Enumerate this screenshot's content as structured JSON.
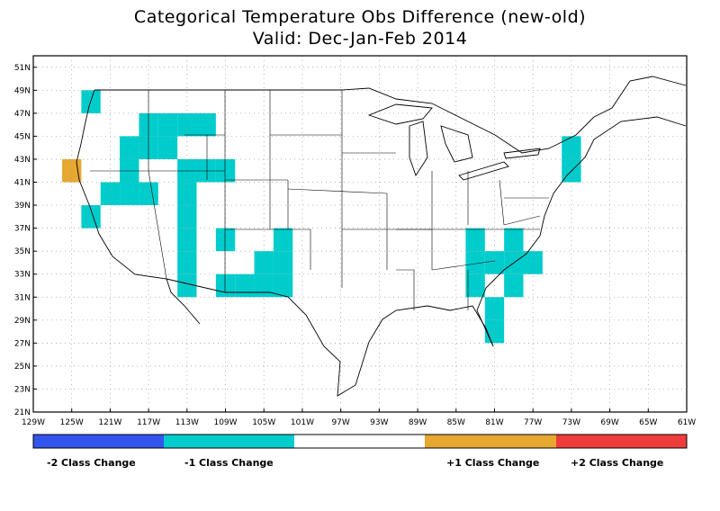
{
  "title": {
    "line1": "Categorical Temperature Obs Difference (new-old)",
    "line2": "Valid: Dec-Jan-Feb 2014"
  },
  "map": {
    "lon_range": [
      -129,
      -61
    ],
    "lat_range": [
      21,
      52
    ],
    "lat_ticks": [
      "51N",
      "49N",
      "47N",
      "45N",
      "43N",
      "41N",
      "39N",
      "37N",
      "35N",
      "33N",
      "31N",
      "29N",
      "27N",
      "25N",
      "23N",
      "21N"
    ],
    "lat_values": [
      51,
      49,
      47,
      45,
      43,
      41,
      39,
      37,
      35,
      33,
      31,
      29,
      27,
      25,
      23,
      21
    ],
    "lon_ticks": [
      "129W",
      "125W",
      "121W",
      "117W",
      "113W",
      "109W",
      "105W",
      "101W",
      "97W",
      "93W",
      "89W",
      "85W",
      "81W",
      "77W",
      "73W",
      "69W",
      "65W",
      "61W"
    ],
    "lon_values": [
      -129,
      -125,
      -121,
      -117,
      -113,
      -109,
      -105,
      -101,
      -97,
      -93,
      -89,
      -85,
      -81,
      -77,
      -73,
      -69,
      -65,
      -61
    ],
    "grid": true,
    "cell_size_deg": 2,
    "colors": {
      "minus2": "#3355ee",
      "minus1": "#00cccc",
      "zero": "#ffffff",
      "plus1": "#e6a830",
      "plus2": "#ee3c3c"
    },
    "cells_minus1": [
      [
        -123,
        48
      ],
      [
        -117,
        46
      ],
      [
        -115,
        46
      ],
      [
        -113,
        46
      ],
      [
        -111,
        46
      ],
      [
        -117,
        44
      ],
      [
        -115,
        44
      ],
      [
        -119,
        44
      ],
      [
        -119,
        42
      ],
      [
        -113,
        42
      ],
      [
        -111,
        42
      ],
      [
        -109,
        42
      ],
      [
        -119,
        40
      ],
      [
        -117,
        40
      ],
      [
        -113,
        40
      ],
      [
        -121,
        40
      ],
      [
        -113,
        38
      ],
      [
        -123,
        38
      ],
      [
        -113,
        36
      ],
      [
        -109,
        36
      ],
      [
        -103,
        36
      ],
      [
        -105,
        34
      ],
      [
        -103,
        34
      ],
      [
        -113,
        34
      ],
      [
        -109,
        32
      ],
      [
        -107,
        32
      ],
      [
        -105,
        32
      ],
      [
        -103,
        32
      ],
      [
        -113,
        32
      ],
      [
        -83,
        36
      ],
      [
        -79,
        36
      ],
      [
        -83,
        34
      ],
      [
        -81,
        34
      ],
      [
        -79,
        34
      ],
      [
        -77,
        34
      ],
      [
        -83,
        32
      ],
      [
        -79,
        32
      ],
      [
        -81,
        28
      ],
      [
        -81,
        30
      ],
      [
        -73,
        44
      ],
      [
        -73,
        42
      ]
    ],
    "cells_plus1": [
      [
        -125,
        42
      ]
    ]
  },
  "legend": {
    "labels": [
      "-2 Class Change",
      "-1 Class Change",
      "+1 Class Change",
      "+2 Class Change"
    ]
  }
}
